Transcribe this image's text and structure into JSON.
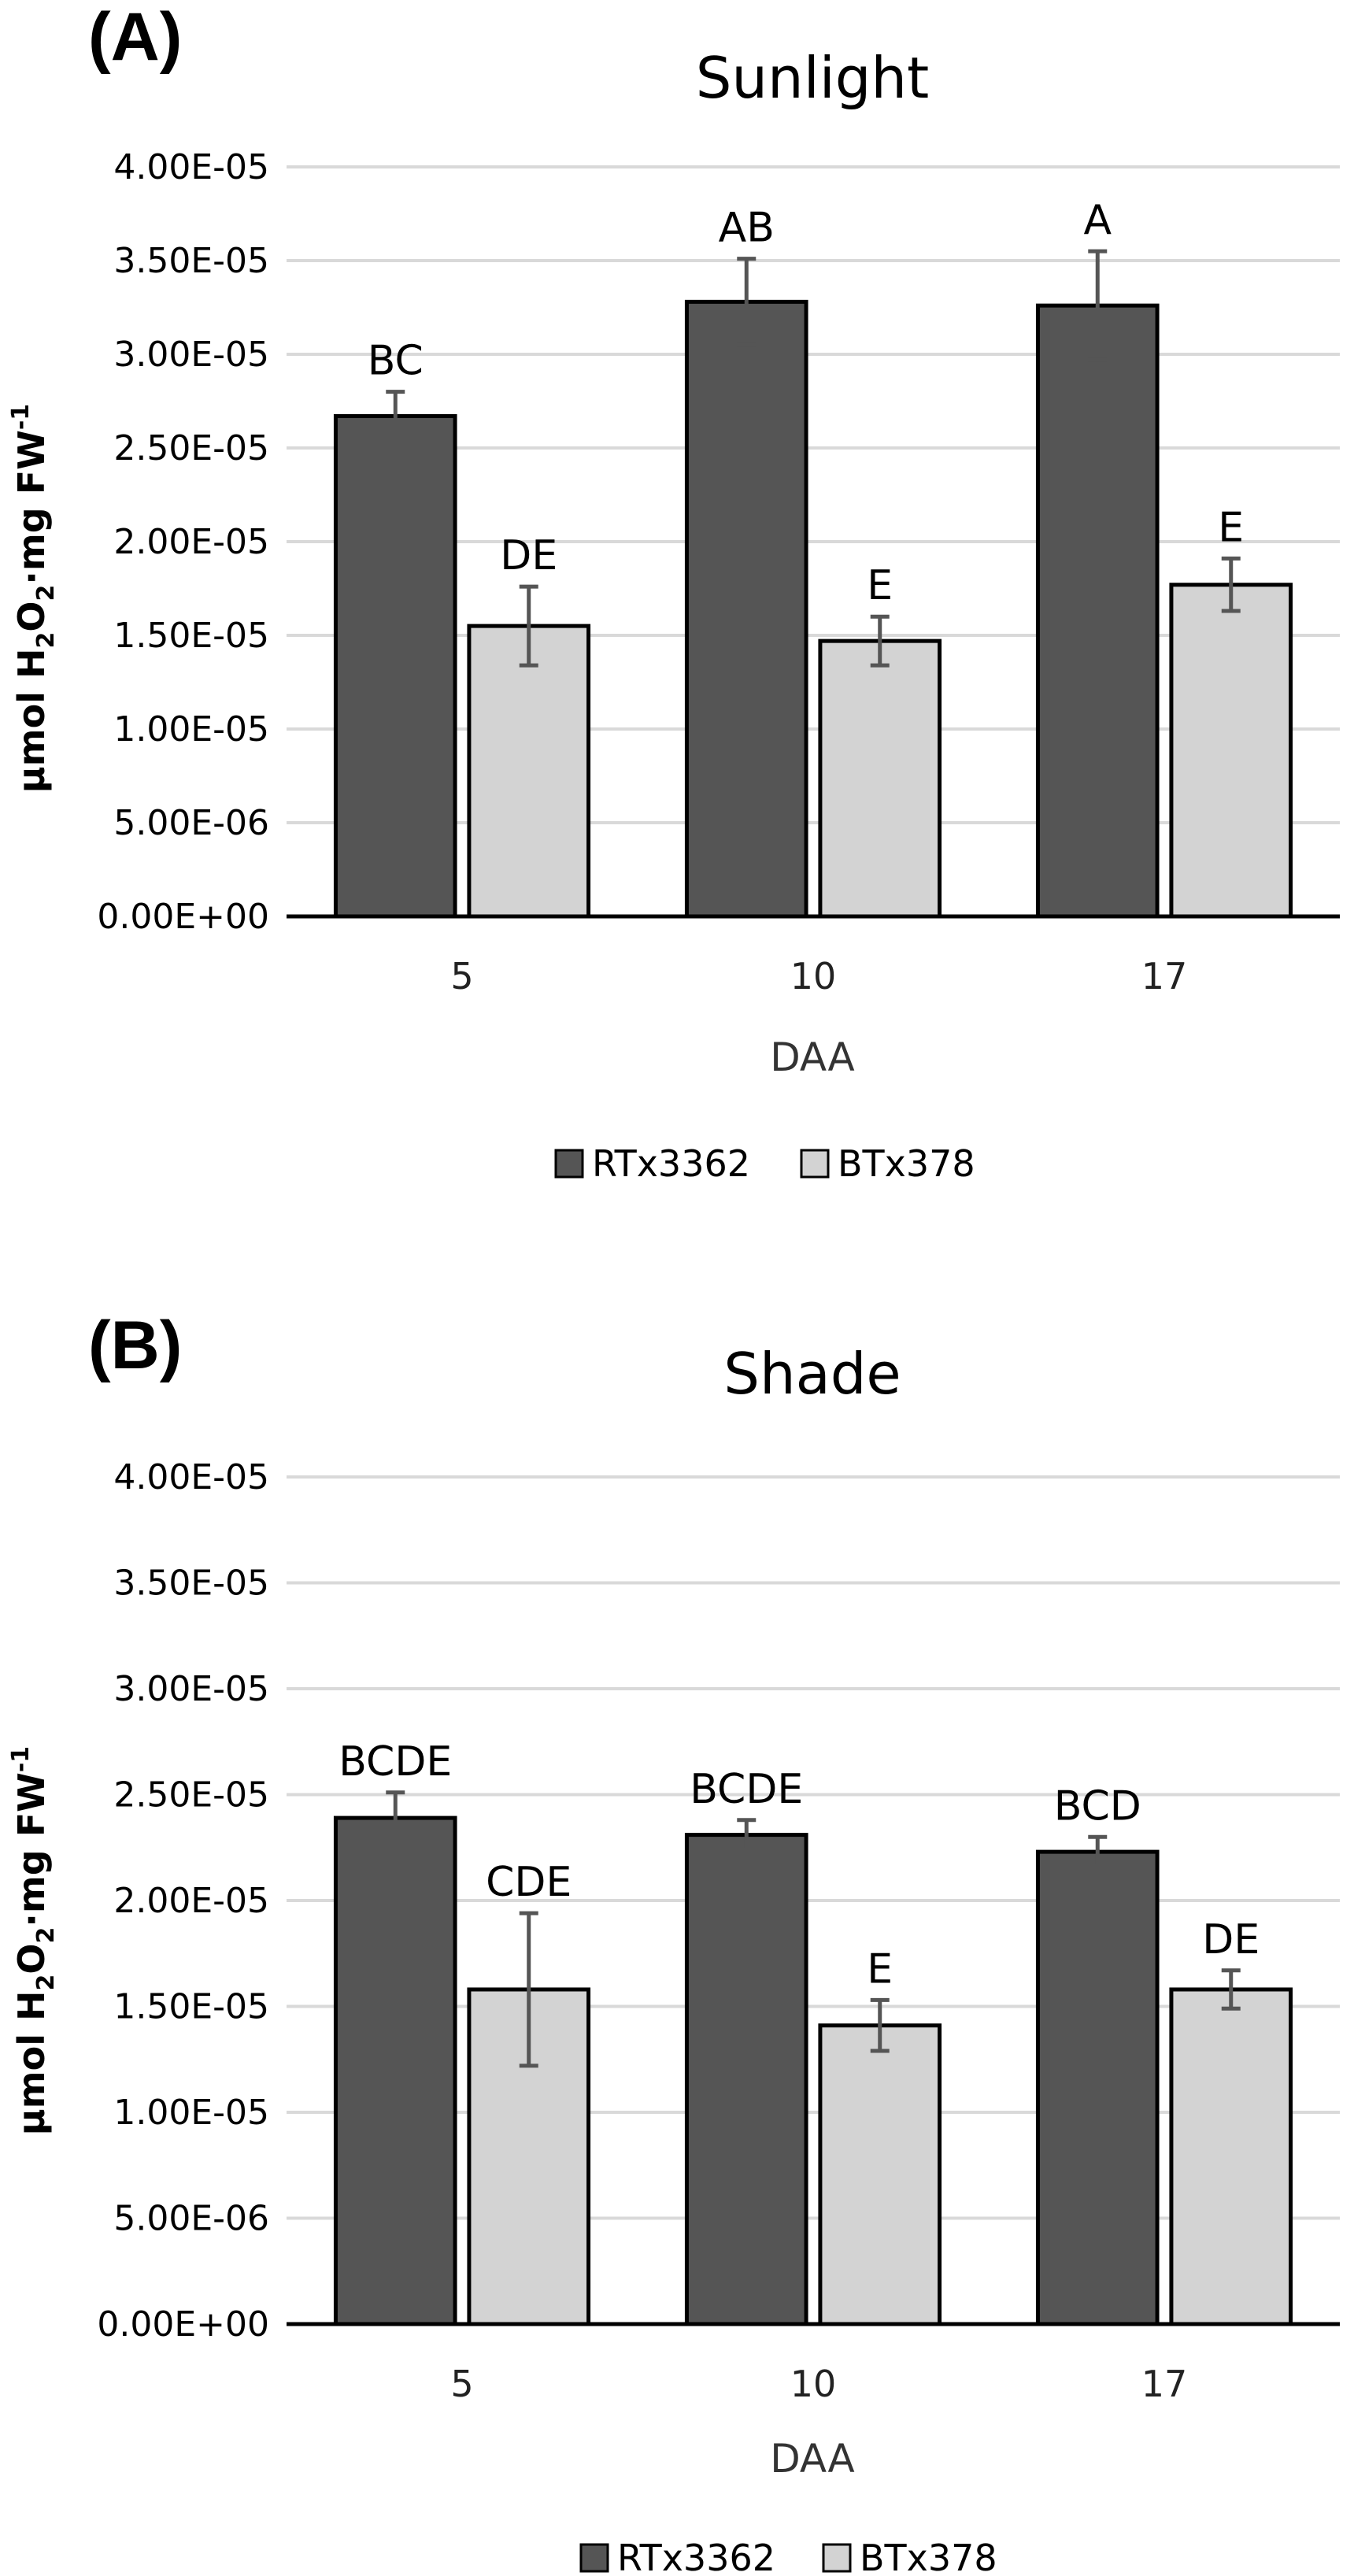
{
  "chart_data": [
    {
      "panel": "(A)",
      "type": "bar",
      "title": "Sunlight",
      "xlabel": "DAA",
      "ylabel": {
        "pre": "µmol H",
        "sub1": "2",
        "mid1": "O",
        "sub2": "2",
        "mid2": "·mg FW",
        "sup": "-1"
      },
      "ylim": [
        0,
        4e-05
      ],
      "yticks": [
        "0.00E+00",
        "5.00E-06",
        "1.00E-05",
        "1.50E-05",
        "2.00E-05",
        "2.50E-05",
        "3.00E-05",
        "3.50E-05",
        "4.00E-05"
      ],
      "categories": [
        "5",
        "10",
        "17"
      ],
      "series": [
        {
          "name": "RTx3362",
          "color": "#555555",
          "values": [
            2.67e-05,
            3.28e-05,
            3.26e-05
          ],
          "errors": [
            1.3e-06,
            2.3e-06,
            2.9e-06
          ],
          "labels": [
            "BC",
            "AB",
            "A"
          ]
        },
        {
          "name": "BTx378",
          "color": "#d3d3d3",
          "values": [
            1.55e-05,
            1.47e-05,
            1.77e-05
          ],
          "errors": [
            2.1e-06,
            1.3e-06,
            1.4e-06
          ],
          "labels": [
            "DE",
            "E",
            "E"
          ]
        }
      ],
      "legend_position": "bottom"
    },
    {
      "panel": "(B)",
      "type": "bar",
      "title": "Shade",
      "xlabel": "DAA",
      "ylabel": {
        "pre": "µmol H",
        "sub1": "2",
        "mid1": "O",
        "sub2": "2",
        "mid2": "·mg FW",
        "sup": "-1"
      },
      "ylim": [
        0,
        4e-05
      ],
      "yticks": [
        "0.00E+00",
        "5.00E-06",
        "1.00E-05",
        "1.50E-05",
        "2.00E-05",
        "2.50E-05",
        "3.00E-05",
        "3.50E-05",
        "4.00E-05"
      ],
      "categories": [
        "5",
        "10",
        "17"
      ],
      "series": [
        {
          "name": "RTx3362",
          "color": "#555555",
          "values": [
            2.39e-05,
            2.31e-05,
            2.23e-05
          ],
          "errors": [
            1.2e-06,
            7e-07,
            7e-07
          ],
          "labels": [
            "BCDE",
            "BCDE",
            "BCD"
          ]
        },
        {
          "name": "BTx378",
          "color": "#d3d3d3",
          "values": [
            1.58e-05,
            1.41e-05,
            1.58e-05
          ],
          "errors": [
            3.6e-06,
            1.2e-06,
            9e-07
          ],
          "labels": [
            "CDE",
            "E",
            "DE"
          ]
        }
      ],
      "legend_position": "bottom"
    }
  ]
}
